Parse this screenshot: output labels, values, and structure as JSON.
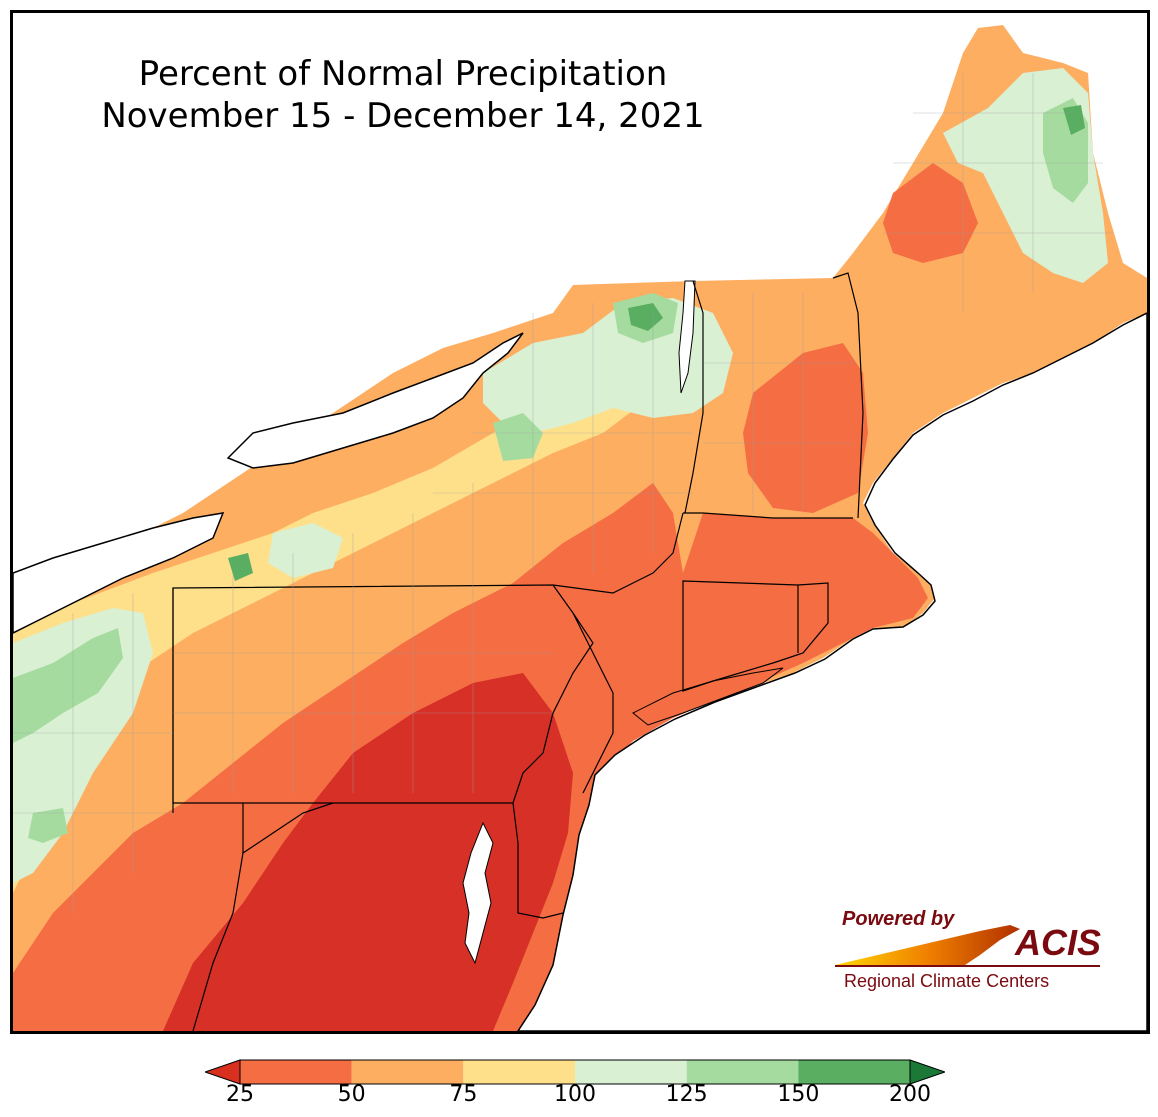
{
  "title": {
    "line1": "Percent of Normal Precipitation",
    "line2": "November 15 - December 14, 2021"
  },
  "logo": {
    "powered_by": "Powered by",
    "acis": "ACIS",
    "regional": "Regional Climate Centers"
  },
  "legend": {
    "ticks": [
      "25",
      "50",
      "75",
      "100",
      "125",
      "150",
      "200"
    ],
    "colors": [
      "#d7301f",
      "#f46d43",
      "#fdae61",
      "#fee08b",
      "#d9f0d3",
      "#a6dba0",
      "#5aae61",
      "#1b7837"
    ]
  },
  "palette": {
    "deep_red": "#d7301f",
    "red": "#ef6548",
    "orange": "#fdae61",
    "yellow": "#fee08b",
    "light_green": "#d9f0d3",
    "green": "#a6dba0",
    "dark_green": "#5aae61",
    "water": "#ffffff",
    "border": "#000000"
  }
}
